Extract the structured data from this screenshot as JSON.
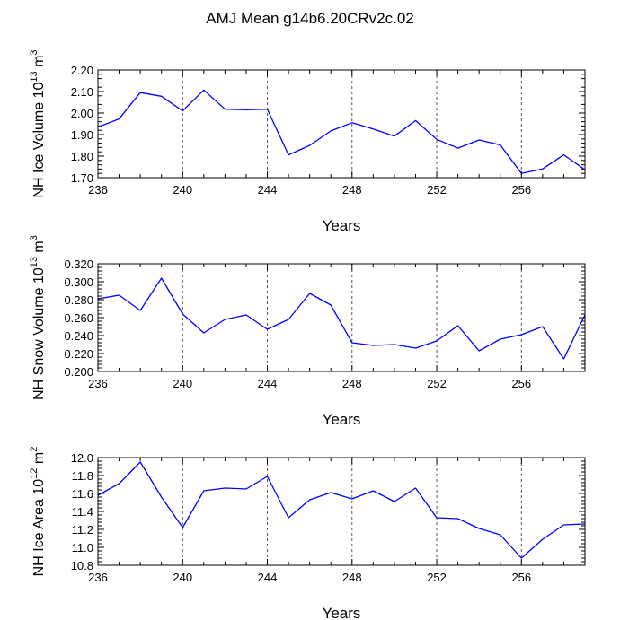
{
  "figure": {
    "title": "AMJ Mean g14b6.20CRv2c.02"
  },
  "chart_data": [
    {
      "type": "line",
      "xlabel": "Years",
      "ylabel": {
        "prefix": "NH Ice Volume 10",
        "exp1": "13",
        "mid": " m",
        "exp2": "3"
      },
      "xlim": [
        236,
        259
      ],
      "ylim": [
        1.7,
        2.2
      ],
      "xticks": [
        236,
        240,
        244,
        248,
        252,
        256
      ],
      "xtick_labels": [
        "236",
        "240",
        "244",
        "248",
        "252",
        "256"
      ],
      "yticks": [
        1.7,
        1.8,
        1.9,
        2.0,
        2.1,
        2.2
      ],
      "ytick_labels": [
        "1.70",
        "1.80",
        "1.90",
        "2.00",
        "2.10",
        "2.20"
      ],
      "series": [
        {
          "name": "NH Ice Volume",
          "color": "#0000ff",
          "x": [
            236,
            237,
            238,
            239,
            240,
            241,
            242,
            243,
            244,
            245,
            246,
            247,
            248,
            249,
            250,
            251,
            252,
            253,
            254,
            255,
            256,
            257,
            258,
            259
          ],
          "values": [
            1.935,
            1.973,
            2.095,
            2.078,
            2.01,
            2.107,
            2.018,
            2.015,
            2.018,
            1.806,
            1.85,
            1.917,
            1.955,
            1.926,
            1.893,
            1.965,
            1.878,
            1.837,
            1.875,
            1.852,
            1.72,
            1.741,
            1.806,
            1.737
          ]
        }
      ]
    },
    {
      "type": "line",
      "xlabel": "Years",
      "ylabel": {
        "prefix": "NH Snow Volume 10",
        "exp1": "13",
        "mid": " m",
        "exp2": "3"
      },
      "xlim": [
        236,
        259
      ],
      "ylim": [
        0.2,
        0.32
      ],
      "xticks": [
        236,
        240,
        244,
        248,
        252,
        256
      ],
      "xtick_labels": [
        "236",
        "240",
        "244",
        "248",
        "252",
        "256"
      ],
      "yticks": [
        0.2,
        0.22,
        0.24,
        0.26,
        0.28,
        0.3,
        0.32
      ],
      "ytick_labels": [
        "0.200",
        "0.220",
        "0.240",
        "0.260",
        "0.280",
        "0.300",
        "0.320"
      ],
      "series": [
        {
          "name": "NH Snow Volume",
          "color": "#0000ff",
          "x": [
            236,
            237,
            238,
            239,
            240,
            241,
            242,
            243,
            244,
            245,
            246,
            247,
            248,
            249,
            250,
            251,
            252,
            253,
            254,
            255,
            256,
            257,
            258,
            259
          ],
          "values": [
            0.281,
            0.285,
            0.268,
            0.304,
            0.264,
            0.243,
            0.258,
            0.263,
            0.247,
            0.258,
            0.287,
            0.274,
            0.232,
            0.229,
            0.23,
            0.226,
            0.234,
            0.251,
            0.223,
            0.236,
            0.241,
            0.25,
            0.214,
            0.263
          ]
        }
      ]
    },
    {
      "type": "line",
      "xlabel": "Years",
      "ylabel": {
        "prefix": "NH Ice Area 10",
        "exp1": "12",
        "mid": " m",
        "exp2": "2"
      },
      "xlim": [
        236,
        259
      ],
      "ylim": [
        10.8,
        12.0
      ],
      "xticks": [
        236,
        240,
        244,
        248,
        252,
        256
      ],
      "xtick_labels": [
        "236",
        "240",
        "244",
        "248",
        "252",
        "256"
      ],
      "yticks": [
        10.8,
        11.0,
        11.2,
        11.4,
        11.6,
        11.8,
        12.0
      ],
      "ytick_labels": [
        "10.8",
        "11.0",
        "11.2",
        "11.4",
        "11.6",
        "11.8",
        "12.0"
      ],
      "series": [
        {
          "name": "NH Ice Area",
          "color": "#0000ff",
          "x": [
            236,
            237,
            238,
            239,
            240,
            241,
            242,
            243,
            244,
            245,
            246,
            247,
            248,
            249,
            250,
            251,
            252,
            253,
            254,
            255,
            256,
            257,
            258,
            259
          ],
          "values": [
            11.58,
            11.71,
            11.95,
            11.56,
            11.22,
            11.63,
            11.66,
            11.65,
            11.79,
            11.33,
            11.53,
            11.61,
            11.54,
            11.63,
            11.51,
            11.66,
            11.33,
            11.32,
            11.21,
            11.14,
            10.88,
            11.09,
            11.25,
            11.26
          ]
        }
      ]
    }
  ]
}
